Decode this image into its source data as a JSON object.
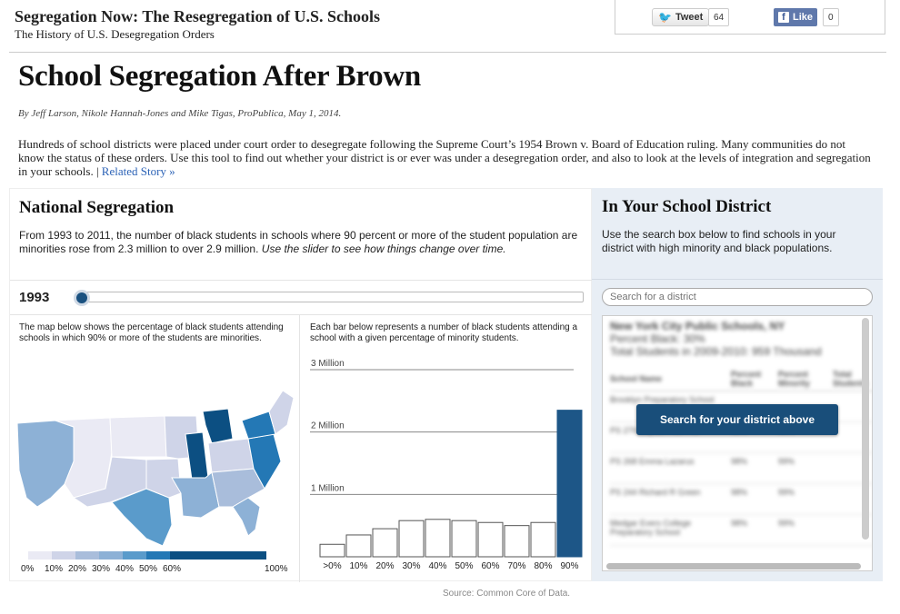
{
  "header": {
    "site_title": "Segregation Now: The Resegregation of U.S. Schools",
    "site_subtitle": "The History of U.S. Desegregation Orders",
    "tweet_label": "Tweet",
    "tweet_count": "64",
    "like_label": "Like",
    "like_count": "0"
  },
  "article": {
    "headline": "School Segregation After Brown",
    "byline": "By Jeff Larson, Nikole Hannah-Jones and Mike Tigas, ProPublica, May 1, 2014.",
    "intro": "Hundreds of school districts were placed under court order to desegregate following the Supreme Court’s 1954 Brown v. Board of Education ruling. Many communities do not know the status of these orders. Use this tool to find out whether your district is or ever was under a desegregation order, and also to look at the levels of integration and segregation in your schools. |",
    "related_link": "Related Story »"
  },
  "national": {
    "title": "National Segregation",
    "desc": "From 1993 to 2011, the number of black students in schools where 90 percent or more of the student population are minorities rose from 2.3 million to over 2.9 million.",
    "desc_italic": "Use the slider to see how things change over time.",
    "year": "1993",
    "slider_level": 0,
    "map_desc": "The map below shows the percentage of black students attending schools in which 90% or more of the students are minorities.",
    "bar_desc": "Each bar below represents a number of black students attending a school with a given percentage of minority students.",
    "legend_labels": [
      "0%",
      "10%",
      "20%",
      "30%",
      "40%",
      "50%",
      "60%",
      "100%"
    ],
    "legend_colors": [
      "#eaeaf4",
      "#cfd4e8",
      "#a9bddb",
      "#8db1d6",
      "#5a9bcb",
      "#2478b5",
      "#0c4f82"
    ]
  },
  "chart_data": {
    "type": "bar",
    "title": "",
    "xlabel": "",
    "ylabel": "",
    "categories": [
      ">0%",
      "10%",
      "20%",
      "30%",
      "40%",
      "50%",
      "60%",
      "70%",
      "80%",
      "90%"
    ],
    "values": [
      0.2,
      0.35,
      0.45,
      0.58,
      0.6,
      0.58,
      0.55,
      0.5,
      0.55,
      2.35
    ],
    "highlight_index": 9,
    "highlight_color": "#1d5687",
    "ylim": [
      0,
      3
    ],
    "gridlines": [
      1,
      2,
      3
    ],
    "gridline_labels": [
      "1 Million",
      "2 Million",
      "3 Million"
    ]
  },
  "district": {
    "title": "In Your School District",
    "desc": "Use the search box below to find schools in your district with high minority and black populations.",
    "search_placeholder": "Search for a district",
    "cta_label": "Search for your district above",
    "sample": {
      "name": "New York City Public Schools, NY",
      "percent_black": "Percent Black: 30%",
      "total": "Total Students in 2009-2010: 959 Thousand",
      "columns": [
        "School Name",
        "Percent Black",
        "Percent Minority",
        "Total Students"
      ],
      "rows": [
        [
          "Brooklyn Preparatory School",
          "",
          "",
          ""
        ],
        [
          "PS 279 Captain Manfred",
          "98%",
          "99%",
          ""
        ],
        [
          "PS 268 Emma Lazarus",
          "98%",
          "99%",
          ""
        ],
        [
          "PS 244 Richard R Green",
          "98%",
          "99%",
          ""
        ],
        [
          "Medgar Evers College Preparatory School",
          "98%",
          "99%",
          ""
        ]
      ]
    }
  },
  "footer": {
    "source": "Source: Common Core of Data."
  }
}
